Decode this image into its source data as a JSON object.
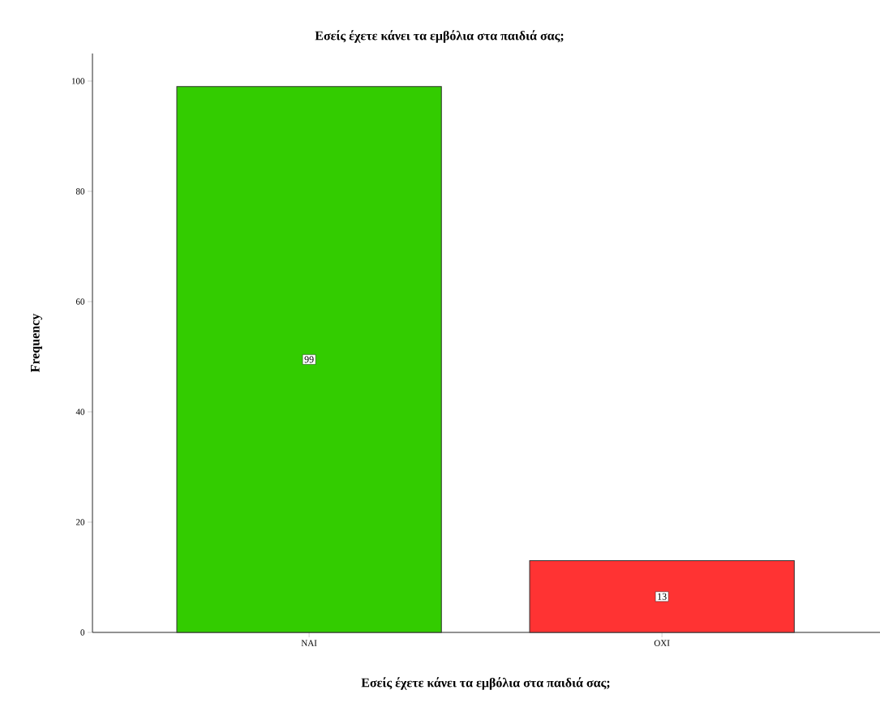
{
  "chart_data": {
    "type": "bar",
    "title": "Εσείς έχετε κάνει τα εμβόλια στα παιδιά σας;",
    "xlabel": "Εσείς έχετε κάνει τα εμβόλια στα παιδιά σας;",
    "ylabel": "Frequency",
    "categories": [
      "ΝΑΙ",
      "ΟΧΙ"
    ],
    "values": [
      99,
      13
    ],
    "colors": [
      "#33cc00",
      "#ff3333"
    ],
    "ylim": [
      0,
      105
    ],
    "yticks": [
      0,
      20,
      40,
      60,
      80,
      100
    ],
    "data_labels": true
  }
}
